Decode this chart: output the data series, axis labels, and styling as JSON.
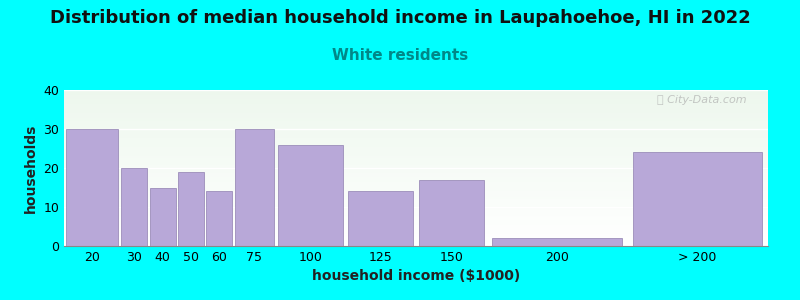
{
  "title": "Distribution of median household income in Laupahoehoe, HI in 2022",
  "subtitle": "White residents",
  "xlabel": "household income ($1000)",
  "ylabel": "households",
  "background_color": "#00FFFF",
  "bar_color": "#b8a8d8",
  "bar_edge_color": "#9080b0",
  "watermark_text": "ⓘ City-Data.com",
  "categories": [
    "20",
    "30",
    "40",
    "50",
    "60",
    "75",
    "100",
    "125",
    "150",
    "200",
    "> 200"
  ],
  "bin_edges": [
    0,
    20,
    30,
    40,
    50,
    60,
    75,
    100,
    125,
    150,
    200,
    250
  ],
  "values": [
    30,
    20,
    15,
    19,
    14,
    30,
    26,
    14,
    17,
    2,
    24
  ],
  "ylim": [
    0,
    40
  ],
  "yticks": [
    0,
    10,
    20,
    30,
    40
  ],
  "xtick_positions": [
    10,
    25,
    35,
    45,
    55,
    67.5,
    87.5,
    112.5,
    137.5,
    175,
    225
  ],
  "xtick_labels": [
    "20",
    "30",
    "40",
    "50",
    "60",
    "75",
    "100",
    "125",
    "150",
    "200",
    "> 200"
  ],
  "title_fontsize": 13,
  "subtitle_fontsize": 11,
  "subtitle_color": "#008888",
  "axis_label_fontsize": 10,
  "tick_fontsize": 9
}
